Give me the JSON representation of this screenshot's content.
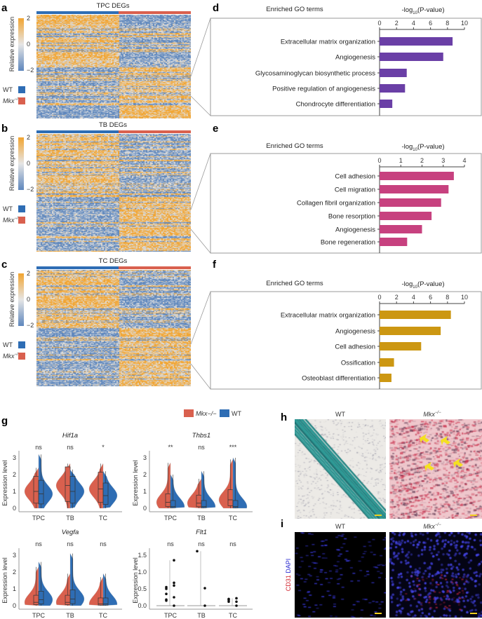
{
  "panel_letters": [
    "a",
    "b",
    "c",
    "d",
    "e",
    "f",
    "g",
    "h",
    "i"
  ],
  "heatmaps": [
    {
      "title": "TPC DEGs",
      "seed": 3
    },
    {
      "title": "TB DEGs",
      "seed": 7
    },
    {
      "title": "TC DEGs",
      "seed": 11
    }
  ],
  "heatmap_legend": {
    "colorbar_label": "Relative expression",
    "ticks": [
      "2",
      "0",
      "−2"
    ],
    "wt": "WT",
    "mkx": "Mkx",
    "mkx_sup": "−/−"
  },
  "colors": {
    "wt": "#2e6db4",
    "mkx": "#d9604e",
    "d": "#6a3fa6",
    "e": "#c7417f",
    "f": "#cc9712",
    "high": "#f2a531",
    "low": "#5e87bd"
  },
  "chart_data": [
    {
      "type": "bar",
      "panel": "d",
      "orientation": "horizontal",
      "title": "Enriched GO terms",
      "xlabel": "-log10(P-value)",
      "xlim": [
        0,
        10
      ],
      "xticks": [
        "0",
        "2",
        "4",
        "6",
        "8",
        "10"
      ],
      "categories": [
        "Extracellular matrix organization",
        "Angiogenesis",
        "Glycosaminoglycan biosynthetic process",
        "Positive regulation of angiogenesis",
        "Chondrocyte differentiation"
      ],
      "values": [
        8.6,
        7.5,
        3.2,
        3.0,
        1.5
      ]
    },
    {
      "type": "bar",
      "panel": "e",
      "orientation": "horizontal",
      "title": "Enriched GO terms",
      "xlabel": "-log10(P-value)",
      "xlim": [
        0,
        4
      ],
      "xticks": [
        "0",
        "1",
        "2",
        "3",
        "4"
      ],
      "categories": [
        "Cell adhesion",
        "Cell migration",
        "Collagen fibril organization",
        "Bone resorption",
        "Angiogenesis",
        "Bone regeneration"
      ],
      "values": [
        3.5,
        3.25,
        2.9,
        2.45,
        2.0,
        1.3
      ]
    },
    {
      "type": "bar",
      "panel": "f",
      "orientation": "horizontal",
      "title": "Enriched GO terms",
      "xlabel": "-log10(P-value)",
      "xlim": [
        0,
        10
      ],
      "xticks": [
        "0",
        "2",
        "4",
        "6",
        "8",
        "10"
      ],
      "categories": [
        "Extracellular matrix organization",
        "Angiogenesis",
        "Cell adhesion",
        "Ossification",
        "Osteoblast differentiation"
      ],
      "values": [
        8.4,
        7.2,
        4.9,
        1.7,
        1.4
      ]
    },
    {
      "type": "violin",
      "panel": "g",
      "legend": [
        "Mkx−/−",
        "WT"
      ],
      "ylabel": "Expression level",
      "categories": [
        "TPC",
        "TB",
        "TC"
      ],
      "genes": [
        {
          "name": "Hif1a",
          "ylim": [
            0,
            3
          ],
          "yticks": [
            "0",
            "1",
            "2",
            "3"
          ],
          "sig": [
            "ns",
            "ns",
            "*"
          ],
          "mkx": [
            {
              "median": 1.0,
              "max": 2.4
            },
            {
              "median": 1.35,
              "max": 2.65
            },
            {
              "median": 1.15,
              "max": 2.65
            }
          ],
          "wt": [
            {
              "median": 0.85,
              "max": 3.2
            },
            {
              "median": 1.0,
              "max": 2.3
            },
            {
              "median": 0.75,
              "max": 2.2
            }
          ]
        },
        {
          "name": "Thbs1",
          "ylim": [
            0,
            3
          ],
          "yticks": [
            "0",
            "1",
            "2",
            "3"
          ],
          "sig": [
            "**",
            "ns",
            "***"
          ],
          "mkx": [
            {
              "median": 0.35,
              "max": 2.7
            },
            {
              "median": 0.3,
              "max": 1.75
            },
            {
              "median": 0.5,
              "max": 2.9
            }
          ],
          "wt": [
            {
              "median": 0.1,
              "max": 2.0
            },
            {
              "median": 0.1,
              "max": 2.2
            },
            {
              "median": 0.1,
              "max": 3.0
            }
          ]
        },
        {
          "name": "Vegfa",
          "ylim": [
            0,
            3
          ],
          "yticks": [
            "0",
            "1",
            "2",
            "3"
          ],
          "sig": [
            "ns",
            "ns",
            "ns"
          ],
          "mkx": [
            {
              "median": 0.2,
              "max": 2.3
            },
            {
              "median": 0.2,
              "max": 1.9
            },
            {
              "median": 0.1,
              "max": 1.7
            }
          ],
          "wt": [
            {
              "median": 0.35,
              "max": 2.6
            },
            {
              "median": 0.4,
              "max": 3.1
            },
            {
              "median": 0.1,
              "max": 1.9
            }
          ]
        },
        {
          "name": "Flt1",
          "ylim": [
            0,
            1.6
          ],
          "yticks": [
            "0.0",
            "0.5",
            "1.0",
            "1.5"
          ],
          "sig": [
            "ns",
            "ns",
            "ns"
          ],
          "points_mkx": [
            [
              0.55,
              0.5,
              0.35,
              0.18,
              0.15
            ],
            [
              1.62
            ],
            [
              0.2,
              0.17,
              0.12
            ]
          ],
          "points_wt": [
            [
              1.35,
              0.68,
              0.6,
              0.25,
              0
            ],
            [
              0.52,
              0
            ],
            [
              0.22,
              0.12,
              0
            ]
          ]
        }
      ]
    }
  ],
  "micrographs": {
    "wt": "WT",
    "mkx": "Mkx",
    "mkx_sup": "−/−",
    "stain_red": "CD31",
    "stain_blue": "DAPI"
  }
}
